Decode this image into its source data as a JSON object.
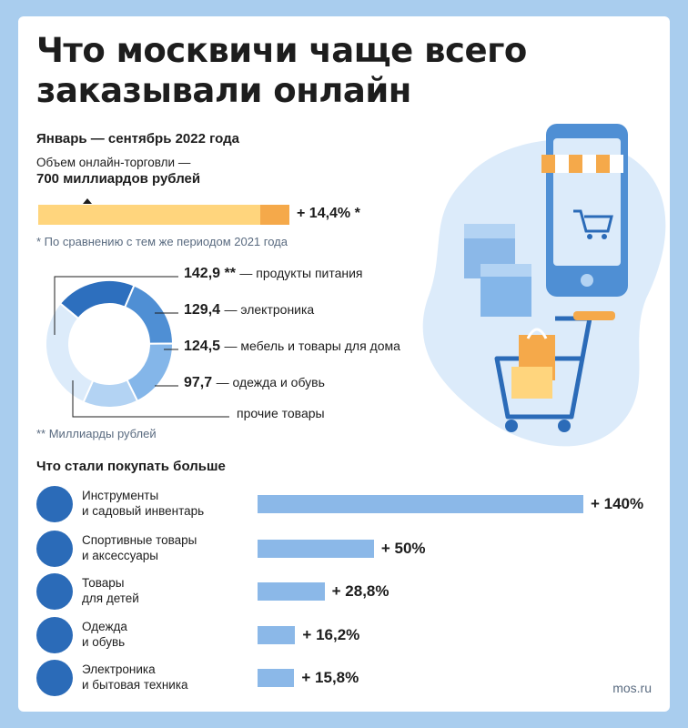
{
  "title_lines": [
    "Что москвичи чаще всего",
    "заказывали онлайн"
  ],
  "period": "Январь — сентябрь 2022 года",
  "volume": {
    "label": "Объем онлайн-торговли —",
    "value": "700 миллиардов рублей",
    "total": 700,
    "growth_percent": 14.4,
    "growth_label": "+ 14,4% *",
    "footnote": "* По сравнению с тем же периодом 2021 года"
  },
  "colors": {
    "background": "#a9cdee",
    "accent": "#2b6bb8",
    "volume_bar": "#ffd57d",
    "growth_bar": "#f5a94a",
    "bars": "#8bb8e8",
    "text": "#1d1d1d"
  },
  "chart_data": [
    {
      "type": "pie",
      "categories": [
        "продукты питания",
        "электроника",
        "мебель и товары для дома",
        "одежда и обувь",
        "прочие товары"
      ],
      "values": [
        142.9,
        129.4,
        124.5,
        97.7,
        205.5
      ],
      "value_labels": [
        "142,9 **",
        "129,4",
        "124,5",
        "97,7",
        ""
      ],
      "colors": [
        "#2d6fbe",
        "#4f8fd4",
        "#84b6e9",
        "#b3d3f3",
        "#dcebfa"
      ],
      "footnote": "** Миллиарды рублей"
    },
    {
      "type": "bar",
      "title": "Что стали покупать больше",
      "categories": [
        [
          "Инструменты",
          "и садовый инвентарь"
        ],
        [
          "Спортивные товары",
          "и аксессуары"
        ],
        [
          "Товары",
          "для детей"
        ],
        [
          "Одежда",
          "и обувь"
        ],
        [
          "Электроника",
          "и бытовая техника"
        ]
      ],
      "values": [
        140,
        50,
        28.8,
        16.2,
        15.8
      ],
      "value_labels": [
        "+ 140%",
        "+ 50%",
        "+ 28,8%",
        "+ 16,2%",
        "+ 15,8%"
      ],
      "icons": [
        "tools-icon",
        "dumbbell-icon",
        "stroller-icon",
        "tshirt-icon",
        "kettle-icon"
      ]
    }
  ],
  "source": "mos.ru"
}
